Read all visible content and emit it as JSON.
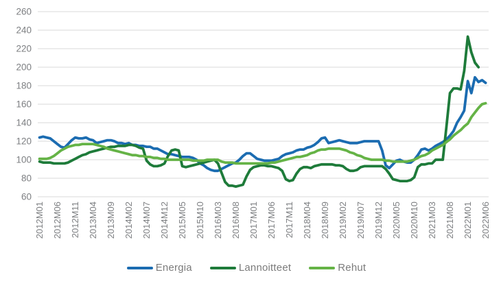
{
  "chart_data": {
    "type": "line",
    "title": "",
    "xlabel": "",
    "ylabel": "",
    "grid": "horizontal",
    "gridline_color": "#d9d9d9",
    "axis_text_color": "#7d7f82",
    "legend_position": "bottom",
    "y_ticks": [
      260,
      240,
      220,
      200,
      180,
      160,
      140,
      120,
      100,
      80,
      60
    ],
    "ylim": [
      60,
      260
    ],
    "points_per_tick": 5,
    "n_points": 126,
    "x_tick_labels": [
      "2012M01",
      "2012M06",
      "2012M11",
      "2013M04",
      "2013M09",
      "2014M02",
      "2014M07",
      "2014M12",
      "2015M05",
      "2015M10",
      "2016M03",
      "2016M08",
      "2017M01",
      "2017M06",
      "2017M11",
      "2018M04",
      "2018M09",
      "2019M02",
      "2019M07",
      "2019M12",
      "2020M05",
      "2020M10",
      "2021M03",
      "2021M08",
      "2022M01",
      "2022M06"
    ],
    "x_start": "2012M01",
    "x_end": "2022M06",
    "x_frequency": "monthly",
    "series": [
      {
        "name": "Energia",
        "color": "#1b6cb1",
        "values": [
          124,
          125,
          124,
          123,
          120,
          117,
          114,
          113,
          117,
          121,
          124,
          123,
          123,
          124,
          122,
          121,
          118,
          119,
          120,
          121,
          121,
          120,
          118,
          118,
          117,
          118,
          116,
          116,
          115,
          115,
          114,
          114,
          112,
          112,
          110,
          108,
          106,
          106,
          105,
          104,
          103,
          103,
          103,
          102,
          100,
          96,
          94,
          91,
          89,
          88,
          88,
          90,
          92,
          94,
          96,
          97,
          100,
          104,
          107,
          107,
          104,
          101,
          100,
          99,
          99,
          99,
          100,
          101,
          104,
          106,
          107,
          108,
          110,
          111,
          111,
          113,
          114,
          116,
          119,
          123,
          124,
          118,
          119,
          120,
          121,
          120,
          119,
          118,
          118,
          118,
          119,
          120,
          120,
          120,
          120,
          120,
          110,
          94,
          91,
          95,
          99,
          100,
          98,
          97,
          97,
          100,
          105,
          111,
          112,
          110,
          112,
          115,
          117,
          119,
          122,
          126,
          131,
          140,
          146,
          153,
          185,
          172,
          189,
          184,
          186,
          183
        ]
      },
      {
        "name": "Lannoitteet",
        "color": "#1e7b3a",
        "values": [
          98,
          97,
          97,
          97,
          96,
          96,
          96,
          96,
          97,
          99,
          101,
          103,
          105,
          106,
          108,
          109,
          110,
          111,
          112,
          113,
          114,
          114,
          115,
          115,
          115,
          116,
          116,
          115,
          113,
          112,
          99,
          95,
          93,
          93,
          94,
          96,
          104,
          110,
          111,
          110,
          93,
          92,
          93,
          94,
          95,
          96,
          97,
          98,
          99,
          100,
          96,
          86,
          76,
          72,
          72,
          71,
          72,
          73,
          82,
          89,
          92,
          93,
          94,
          94,
          93,
          93,
          92,
          91,
          88,
          79,
          77,
          78,
          85,
          90,
          92,
          92,
          91,
          93,
          94,
          95,
          95,
          95,
          95,
          94,
          94,
          93,
          90,
          88,
          88,
          89,
          92,
          93,
          93,
          93,
          93,
          93,
          93,
          90,
          85,
          79,
          78,
          77,
          77,
          77,
          78,
          81,
          92,
          95,
          95,
          96,
          96,
          100,
          100,
          100,
          135,
          172,
          177,
          177,
          176,
          196,
          233,
          216,
          205,
          200,
          null,
          null
        ]
      },
      {
        "name": "Rehut",
        "color": "#65b346",
        "values": [
          101,
          101,
          101,
          102,
          104,
          107,
          110,
          112,
          114,
          115,
          116,
          116,
          117,
          117,
          117,
          117,
          116,
          115,
          114,
          112,
          111,
          110,
          109,
          108,
          107,
          106,
          105,
          105,
          104,
          104,
          103,
          103,
          102,
          102,
          101,
          101,
          100,
          100,
          100,
          100,
          100,
          100,
          100,
          99,
          99,
          99,
          99,
          100,
          100,
          100,
          100,
          98,
          97,
          97,
          97,
          96,
          96,
          96,
          96,
          96,
          96,
          96,
          96,
          96,
          96,
          97,
          97,
          98,
          99,
          100,
          101,
          102,
          103,
          103,
          104,
          105,
          107,
          108,
          110,
          111,
          111,
          112,
          112,
          112,
          112,
          111,
          110,
          108,
          107,
          105,
          104,
          102,
          101,
          100,
          100,
          100,
          100,
          99,
          99,
          98,
          98,
          98,
          98,
          98,
          99,
          100,
          102,
          104,
          105,
          107,
          110,
          112,
          114,
          116,
          119,
          122,
          126,
          129,
          132,
          136,
          139,
          146,
          151,
          156,
          160,
          161
        ]
      }
    ]
  },
  "legend": {
    "items": [
      {
        "label": "Energia"
      },
      {
        "label": "Lannoitteet"
      },
      {
        "label": "Rehut"
      }
    ]
  }
}
